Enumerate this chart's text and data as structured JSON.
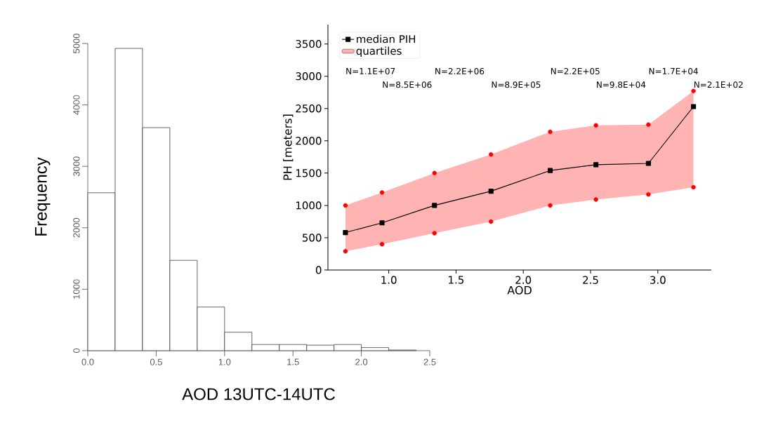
{
  "chart_data": [
    {
      "type": "histogram",
      "xlabel": "AOD 13UTC-14UTC",
      "ylabel": "Frequency",
      "bins": [
        0,
        0.2,
        0.4,
        0.6,
        0.8,
        1.0,
        1.2,
        1.4,
        1.6,
        1.8,
        2.0,
        2.2,
        2.4
      ],
      "values": [
        2570,
        4920,
        3630,
        1470,
        710,
        300,
        100,
        100,
        90,
        100,
        50,
        10
      ],
      "color": "#ffffff",
      "xlim": [
        0,
        2.5
      ],
      "ylim": [
        0,
        5000
      ],
      "xticks": [
        {
          "value": 0,
          "label": "0.0"
        },
        {
          "value": 0.5,
          "label": "0.5"
        },
        {
          "value": 1,
          "label": "1.0"
        },
        {
          "value": 1.5,
          "label": "1.5"
        },
        {
          "value": 2,
          "label": "2.0"
        },
        {
          "value": 2.5,
          "label": "2.5"
        }
      ],
      "yticks": [
        0,
        1000,
        2000,
        3000,
        4000,
        5000
      ]
    },
    {
      "type": "line",
      "xlabel": "AOD",
      "ylabel": "PH [meters]",
      "legend": "top left",
      "x": [
        0.678,
        0.95,
        1.34,
        1.76,
        2.2,
        2.54,
        2.93,
        3.265
      ],
      "series": [
        {
          "name": "median PIH",
          "type": "line",
          "color": "#000000",
          "marker": "square",
          "values": [
            580,
            730,
            1000,
            1220,
            1540,
            1630,
            1650,
            2530
          ],
          "lower": [
            290,
            400,
            570,
            750,
            1000,
            1090,
            1170,
            1280
          ],
          "upper": [
            1000,
            1200,
            1500,
            1790,
            2140,
            2240,
            2250,
            2770
          ]
        },
        {
          "name": "quartiles",
          "type": "area",
          "color": "#ffb3b3",
          "values": [
            null,
            null,
            null,
            null,
            null,
            null,
            null,
            null
          ]
        },
        {
          "type": "scatter",
          "color": "#ff0000",
          "marker": "circle",
          "values": [
            1000,
            1200,
            1500,
            1790,
            2140,
            2240,
            2250,
            2770
          ]
        },
        {
          "type": "scatter",
          "color": "#ff0000",
          "marker": "circle",
          "values": [
            290,
            400,
            570,
            750,
            1000,
            1090,
            1170,
            1280
          ]
        }
      ],
      "annotations": [
        "N=1.1E+07",
        "N=8.5E+06",
        "N=2.2E+06",
        "N=8.9E+05",
        "N=2.2E+05",
        "N=9.8E+04",
        "N=1.7E+04",
        "N=2.1E+02"
      ],
      "xlim": [
        0.548,
        3.398
      ],
      "ylim": [
        0,
        3800
      ],
      "xticks": [
        {
          "value": 1,
          "label": "1.0"
        },
        {
          "value": 1.5,
          "label": "1.5"
        },
        {
          "value": 2,
          "label": "2.0"
        },
        {
          "value": 2.5,
          "label": "2.5"
        },
        {
          "value": 3,
          "label": "3.0"
        }
      ],
      "yticks": [
        0,
        500,
        1000,
        1500,
        2000,
        2500,
        3000,
        3500
      ]
    }
  ]
}
